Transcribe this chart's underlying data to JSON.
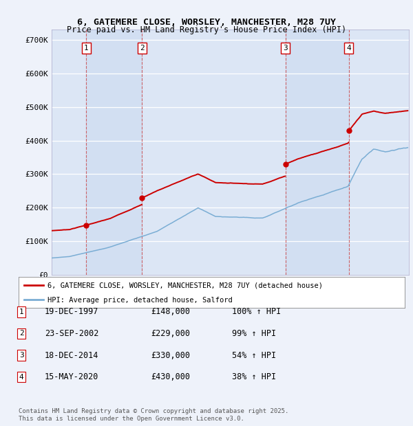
{
  "title": "6, GATEMERE CLOSE, WORSLEY, MANCHESTER, M28 7UY",
  "subtitle": "Price paid vs. HM Land Registry's House Price Index (HPI)",
  "ylim": [
    0,
    730000
  ],
  "yticks": [
    0,
    100000,
    200000,
    300000,
    400000,
    500000,
    600000,
    700000
  ],
  "ytick_labels": [
    "£0",
    "£100K",
    "£200K",
    "£300K",
    "£400K",
    "£500K",
    "£600K",
    "£700K"
  ],
  "xlim_start": 1995.0,
  "xlim_end": 2025.5,
  "background_color": "#eef2fa",
  "plot_bg_color": "#dce6f5",
  "grid_color": "#ffffff",
  "red_line_color": "#cc0000",
  "blue_line_color": "#7aadd4",
  "transactions": [
    {
      "num": 1,
      "date": "19-DEC-1997",
      "date_x": 1997.96,
      "price": 148000,
      "pct": "100%"
    },
    {
      "num": 2,
      "date": "23-SEP-2002",
      "date_x": 2002.72,
      "price": 229000,
      "pct": "99%"
    },
    {
      "num": 3,
      "date": "18-DEC-2014",
      "date_x": 2014.96,
      "price": 330000,
      "pct": "54%"
    },
    {
      "num": 4,
      "date": "15-MAY-2020",
      "date_x": 2020.37,
      "price": 430000,
      "pct": "38%"
    }
  ],
  "legend_entry1": "6, GATEMERE CLOSE, WORSLEY, MANCHESTER, M28 7UY (detached house)",
  "legend_entry2": "HPI: Average price, detached house, Salford",
  "footer": "Contains HM Land Registry data © Crown copyright and database right 2025.\nThis data is licensed under the Open Government Licence v3.0.",
  "table_rows": [
    {
      "num": 1,
      "date": "19-DEC-1997",
      "price": "£148,000",
      "pct": "100% ↑ HPI"
    },
    {
      "num": 2,
      "date": "23-SEP-2002",
      "price": "£229,000",
      "pct": "99% ↑ HPI"
    },
    {
      "num": 3,
      "date": "18-DEC-2014",
      "price": "£330,000",
      "pct": "54% ↑ HPI"
    },
    {
      "num": 4,
      "date": "15-MAY-2020",
      "price": "£430,000",
      "pct": "38% ↑ HPI"
    }
  ]
}
